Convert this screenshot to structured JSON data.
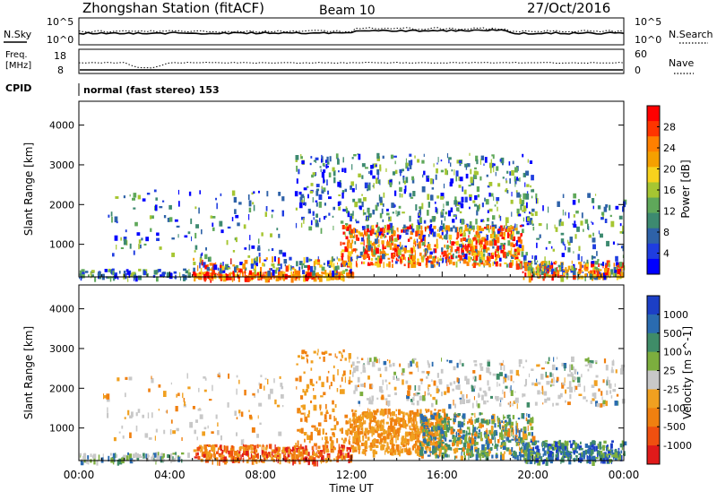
{
  "header": {
    "station": "Zhongshan Station (fitACF)",
    "beam": "Beam 10",
    "date": "27/Oct/2016"
  },
  "panel_noise": {
    "left_label": "N.Sky",
    "left_ticks": [
      "10^5",
      "10^0"
    ],
    "right_label": "N.Search",
    "right_ticks": [
      "10^5",
      "10^0"
    ]
  },
  "panel_freq": {
    "left_label_line1": "Freq.",
    "left_label_line2": "[MHz]",
    "left_ticks": [
      "18",
      "8"
    ],
    "right_label": "Nave",
    "right_ticks": [
      "60",
      "0"
    ]
  },
  "panel_cpid": {
    "label": "CPID",
    "text": "normal (fast stereo) 153"
  },
  "power_colorbar": {
    "label": "Power [dB]",
    "ticks": [
      "28",
      "24",
      "20",
      "16",
      "12",
      "8",
      "4"
    ],
    "colors": [
      "#ff0000",
      "#ff3500",
      "#ff8000",
      "#f5a000",
      "#f7d21d",
      "#a6c632",
      "#5fa85a",
      "#3d8a70",
      "#2e62a8",
      "#1f3de0",
      "#0000ff"
    ]
  },
  "velocity_colorbar": {
    "label": "Velocity [m s^-1]",
    "ticks": [
      "1000",
      "500",
      "100",
      "25",
      "-25",
      "-100",
      "-500",
      "-1000"
    ],
    "colors": [
      "#1c3fc6",
      "#2a6bb0",
      "#3f8c68",
      "#7cae3e",
      "#c8c8c8",
      "#f0a020",
      "#f08010",
      "#f05010",
      "#e01a1a"
    ]
  },
  "chart_data": [
    {
      "type": "heatmap",
      "name": "power",
      "ylabel": "Slant Range [km]",
      "xlabel": "Time UT",
      "x_ticks": [
        "00:00",
        "04:00",
        "08:00",
        "12:00",
        "16:00",
        "20:00",
        "00:00"
      ],
      "y_ticks": [
        "1000",
        "2000",
        "3000",
        "4000"
      ],
      "xlim_hours": [
        0,
        24
      ],
      "ylim_km": [
        180,
        4600
      ],
      "echo_regions": [
        {
          "t0": 5.0,
          "t1": 12.0,
          "r0": 180,
          "r1": 400,
          "level": "high"
        },
        {
          "t0": 12.0,
          "t1": 19.5,
          "r0": 500,
          "r1": 1500,
          "level": "high"
        },
        {
          "t0": 9.5,
          "t1": 19.5,
          "r0": 1500,
          "r1": 3200,
          "level": "low"
        },
        {
          "t0": 19.5,
          "t1": 24.0,
          "r0": 180,
          "r1": 600,
          "level": "high"
        },
        {
          "t0": 0.0,
          "t1": 5.0,
          "r0": 180,
          "r1": 400,
          "level": "low"
        }
      ]
    },
    {
      "type": "heatmap",
      "name": "velocity",
      "ylabel": "Slant Range [km]",
      "xlabel": "Time UT",
      "x_ticks": [
        "00:00",
        "04:00",
        "08:00",
        "12:00",
        "16:00",
        "20:00",
        "00:00"
      ],
      "y_ticks": [
        "1000",
        "2000",
        "3000",
        "4000"
      ],
      "xlim_hours": [
        0,
        24
      ],
      "ylim_km": [
        180,
        4600
      ],
      "echo_regions": [
        {
          "t0": 5.0,
          "t1": 12.0,
          "r0": 180,
          "r1": 600,
          "velocity": "-100 to -1000"
        },
        {
          "t0": 12.0,
          "t1": 16.0,
          "r0": 400,
          "r1": 1500,
          "velocity": "-100"
        },
        {
          "t0": 16.0,
          "t1": 20.0,
          "r0": 300,
          "r1": 1400,
          "velocity": "100 to 500"
        },
        {
          "t0": 20.0,
          "t1": 24.0,
          "r0": 180,
          "r1": 700,
          "velocity": "100 to 1000"
        },
        {
          "t0": 13.0,
          "t1": 24.0,
          "r0": 1800,
          "r1": 2600,
          "velocity": "-25 to 25"
        }
      ]
    }
  ]
}
